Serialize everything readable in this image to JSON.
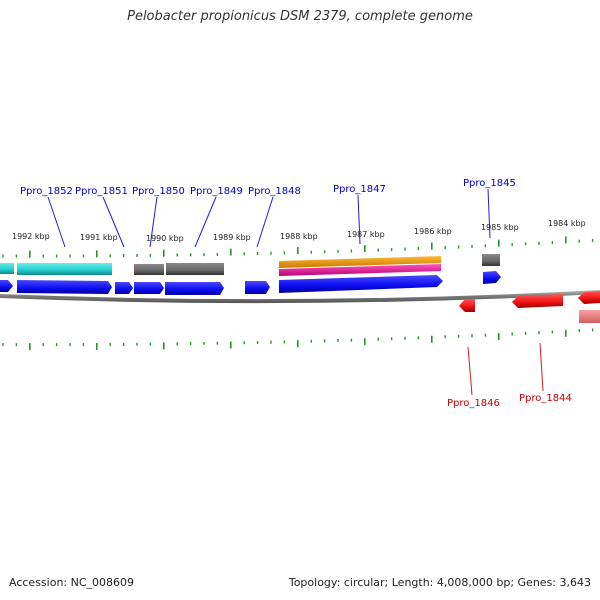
{
  "title": "Pelobacter propionicus DSM 2379, complete genome",
  "accession": "Accession: NC_008609",
  "topology": "Topology: circular; Length: 4,008,000 bp; Genes: 3,643",
  "kbp_labels": [
    "1992 kbp",
    "1991 kbp",
    "1990 kbp",
    "1989 kbp",
    "1988 kbp",
    "1987 kbp",
    "1986 kbp",
    "1985 kbp",
    "1984 kbp"
  ],
  "genes_top": [
    "Ppro_1852",
    "Ppro_1851",
    "Ppro_1850",
    "Ppro_1849",
    "Ppro_1848",
    "Ppro_1847",
    "Ppro_1845"
  ],
  "genes_bottom": [
    "Ppro_1846",
    "Ppro_1844"
  ],
  "colors": {
    "forward": "#0b0bf0",
    "reverse": "#ee1111",
    "reverse_light": "#f07070",
    "cyan": "#22cccc",
    "gray": "#666666",
    "orange": "#ee9900",
    "magenta": "#ee1199",
    "tick": "#229922",
    "label_top": "#0000cc",
    "label_bottom": "#cc0000"
  }
}
